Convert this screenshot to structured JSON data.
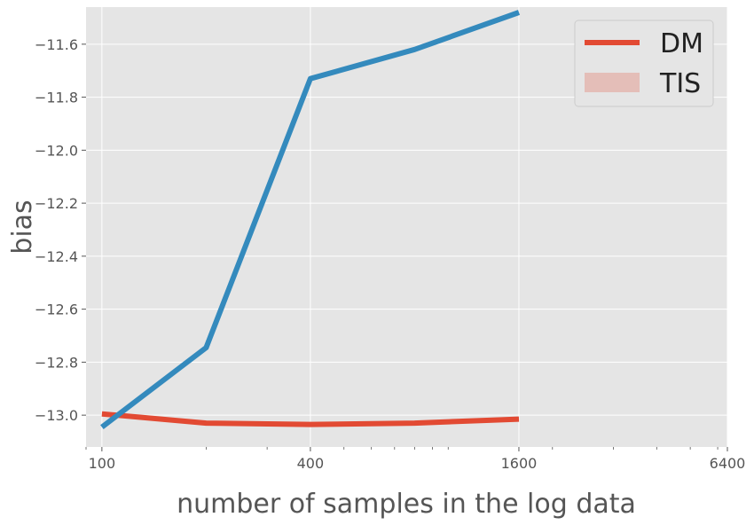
{
  "chart_data": {
    "type": "line",
    "xlabel": "number of samples in the log data",
    "ylabel": "bias",
    "x_scale": "log2",
    "xlim": [
      90,
      6400
    ],
    "ylim": [
      -13.12,
      -11.46
    ],
    "x_ticks": [
      100,
      400,
      1600,
      6400
    ],
    "x_tick_labels": [
      "100",
      "400",
      "1600",
      "6400"
    ],
    "y_ticks": [
      -11.6,
      -11.8,
      -12.0,
      -12.2,
      -12.4,
      -12.6,
      -12.8,
      -13.0
    ],
    "y_tick_labels": [
      "−11.6",
      "−11.8",
      "−12.0",
      "−12.2",
      "−12.4",
      "−12.6",
      "−12.8",
      "−13.0"
    ],
    "grid": true,
    "legend_position": "top-right",
    "series": [
      {
        "name": "DM",
        "color": "#E24A33",
        "legend_style": "line",
        "x": [
          100,
          200,
          400,
          800,
          1600
        ],
        "y": [
          -12.995,
          -13.03,
          -13.035,
          -13.03,
          -13.015
        ]
      },
      {
        "name": "TIS",
        "color": "#E24A33",
        "legend_style": "patch",
        "x": [],
        "y": []
      },
      {
        "name": "",
        "color": "#348ABD",
        "legend_style": "none",
        "x": [
          100,
          200,
          400,
          800,
          1600
        ],
        "y": [
          -13.045,
          -12.745,
          -11.73,
          -11.62,
          -11.48
        ]
      }
    ]
  }
}
